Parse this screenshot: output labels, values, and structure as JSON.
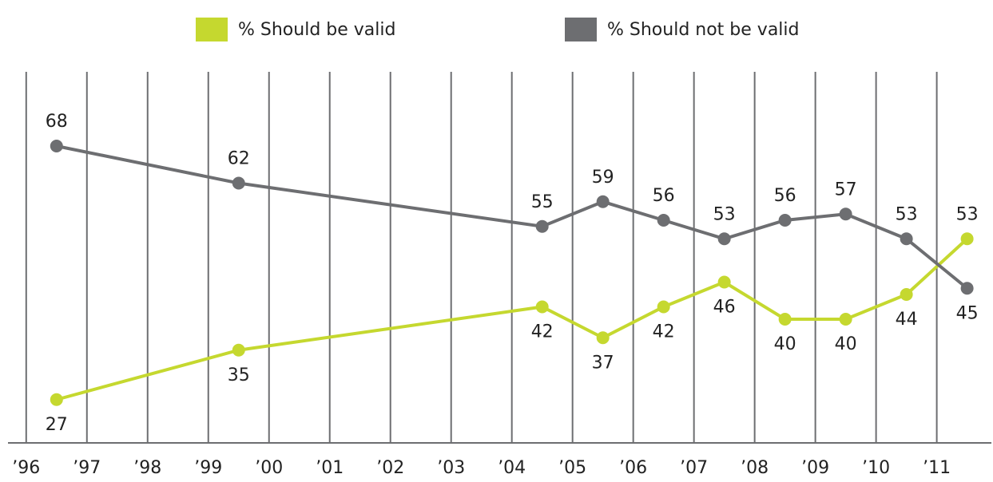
{
  "chart_data": {
    "type": "line",
    "x": [
      1996.5,
      1999.5,
      2004.5,
      2005.5,
      2006.5,
      2007.5,
      2008.5,
      2009.5,
      2010.5,
      2011.5
    ],
    "series": [
      {
        "name": "% Should be valid",
        "color": "#c5d82f",
        "values": [
          27,
          35,
          42,
          37,
          42,
          46,
          40,
          40,
          44,
          53
        ]
      },
      {
        "name": "% Should not be valid",
        "color": "#6d6e71",
        "values": [
          68,
          62,
          55,
          59,
          56,
          53,
          56,
          57,
          53,
          45
        ]
      }
    ],
    "xlim": [
      1995.7,
      2011.9
    ],
    "xticks": [
      {
        "value": 1996,
        "label": "’96"
      },
      {
        "value": 1997,
        "label": "’97"
      },
      {
        "value": 1998,
        "label": "’98"
      },
      {
        "value": 1999,
        "label": "’99"
      },
      {
        "value": 2000,
        "label": "’00"
      },
      {
        "value": 2001,
        "label": "’01"
      },
      {
        "value": 2002,
        "label": "’02"
      },
      {
        "value": 2003,
        "label": "’03"
      },
      {
        "value": 2004,
        "label": "’04"
      },
      {
        "value": 2005,
        "label": "’05"
      },
      {
        "value": 2006,
        "label": "’06"
      },
      {
        "value": 2007,
        "label": "’07"
      },
      {
        "value": 2008,
        "label": "’08"
      },
      {
        "value": 2009,
        "label": "’09"
      },
      {
        "value": 2010,
        "label": "’10"
      },
      {
        "value": 2011,
        "label": "’11"
      }
    ],
    "ylim": [
      20,
      80
    ],
    "grid": true
  }
}
